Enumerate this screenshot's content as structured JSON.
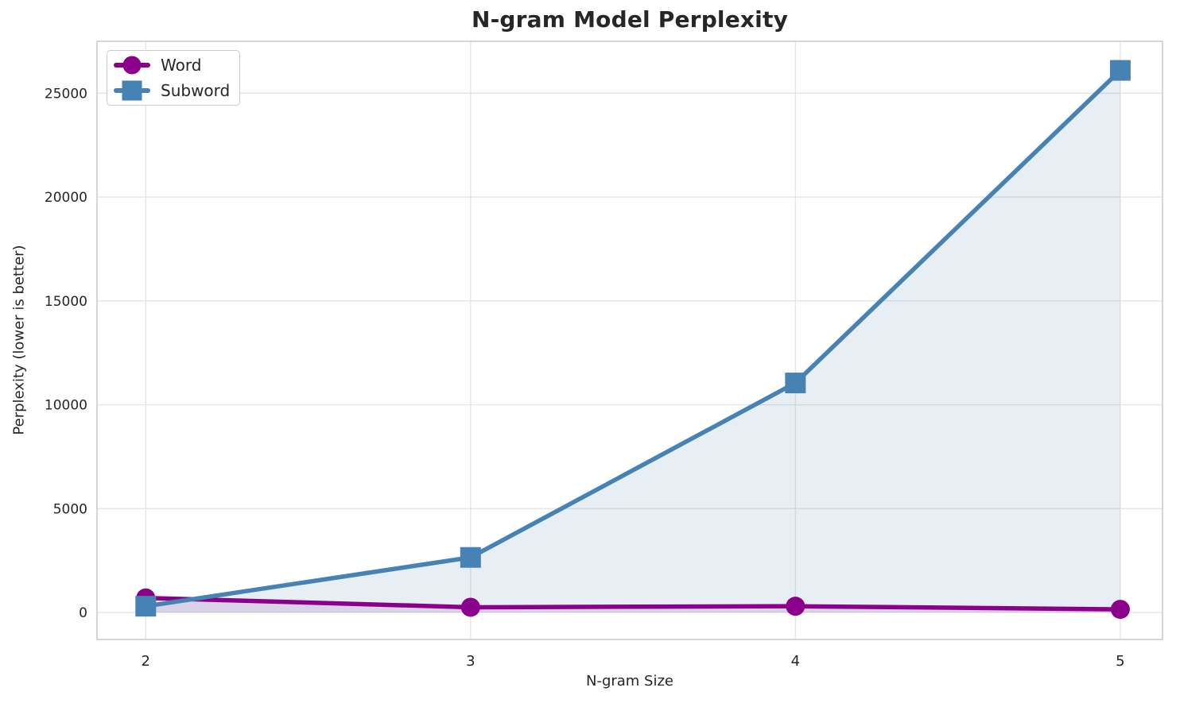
{
  "chart_data": {
    "type": "line",
    "title": "N-gram Model Perplexity",
    "xlabel": "N-gram Size",
    "ylabel": "Perplexity (lower is better)",
    "x": [
      2,
      3,
      4,
      5
    ],
    "x_tick_labels": [
      "2",
      "3",
      "4",
      "5"
    ],
    "y_ticks": [
      0,
      5000,
      10000,
      15000,
      20000,
      25000
    ],
    "y_tick_labels": [
      "0",
      "5000",
      "10000",
      "15000",
      "20000",
      "25000"
    ],
    "xlim": [
      1.85,
      5.13
    ],
    "ylim": [
      -1300,
      27500
    ],
    "grid": true,
    "grid_color": "#e5e5e5",
    "spine_color": "#cccccc",
    "text_color": "#262626",
    "background": "#ffffff",
    "legend_position": "upper-left",
    "series": [
      {
        "name": "Word",
        "marker": "circle",
        "color": "#8B008B",
        "fill_opacity": 0.13,
        "values": [
          700,
          250,
          300,
          150
        ]
      },
      {
        "name": "Subword",
        "marker": "square",
        "color": "#4682B4",
        "fill_opacity": 0.13,
        "values": [
          300,
          2650,
          11050,
          26100
        ]
      }
    ]
  }
}
